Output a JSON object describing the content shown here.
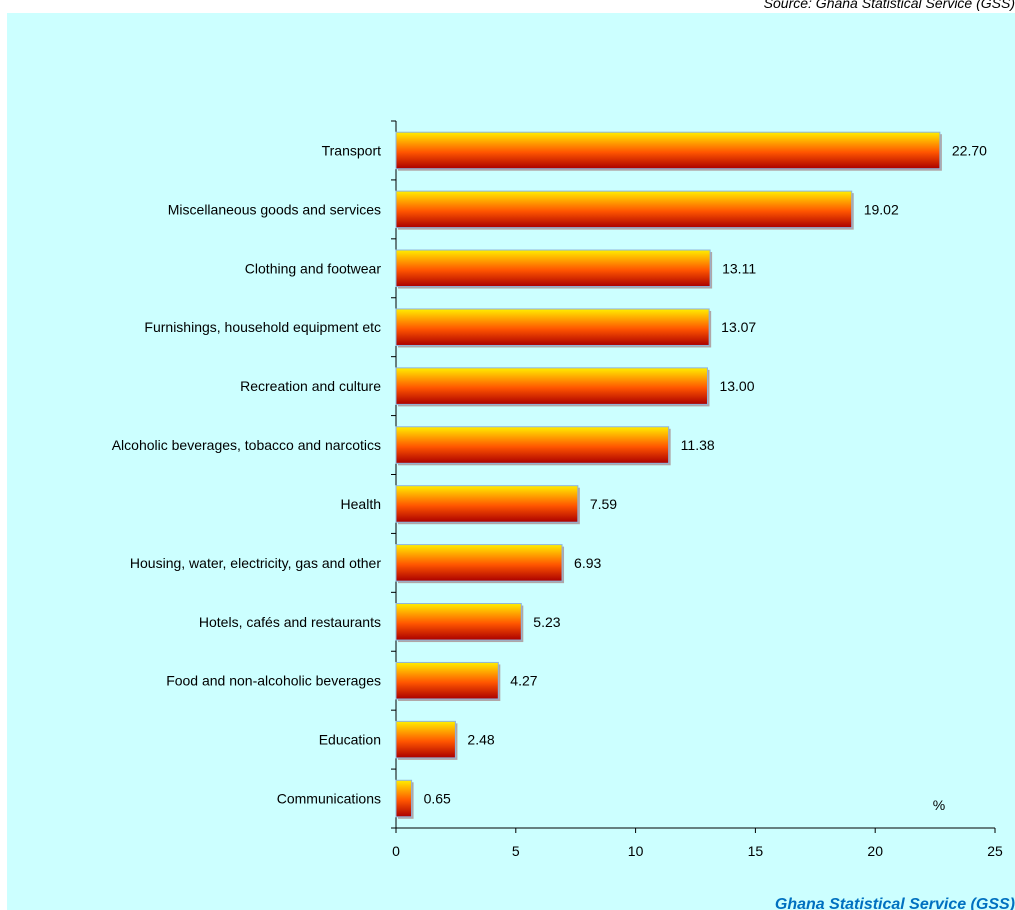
{
  "header": {
    "source_note": "Source: Ghana Statistical Service (GSS)"
  },
  "footer": {
    "credit": "Ghana Statistical Service (GSS)"
  },
  "colors": {
    "panel_background": "#ccffff",
    "bar_top": "#ffee00",
    "bar_mid": "#ff5500",
    "bar_bottom": "#aa0000",
    "bar_outline": "#8fb4dc",
    "credit_text": "#0070c0"
  },
  "chart_data": {
    "type": "bar",
    "orientation": "horizontal",
    "categories": [
      "Transport",
      "Miscellaneous goods and services",
      "Clothing and footwear",
      "Furnishings, household equipment etc",
      "Recreation and culture",
      "Alcoholic beverages, tobacco and narcotics",
      "Health",
      "Housing,  water,  electricity,  gas and other",
      "Hotels, cafés and restaurants",
      "Food and non-alcoholic beverages",
      "Education",
      "Communications"
    ],
    "values": [
      22.7,
      19.02,
      13.11,
      13.07,
      13.0,
      11.38,
      7.59,
      6.93,
      5.23,
      4.27,
      2.48,
      0.65
    ],
    "value_labels": [
      "22.70",
      "19.02",
      "13.11",
      "13.07",
      "13.00",
      "11.38",
      "7.59",
      "6.93",
      "5.23",
      "4.27",
      "2.48",
      "0.65"
    ],
    "x_ticks": [
      0,
      5,
      10,
      15,
      20,
      25
    ],
    "xlim": [
      0,
      25
    ],
    "unit_label": "%",
    "title": "",
    "xlabel": "",
    "ylabel": "",
    "grid": false,
    "legend": "none"
  }
}
